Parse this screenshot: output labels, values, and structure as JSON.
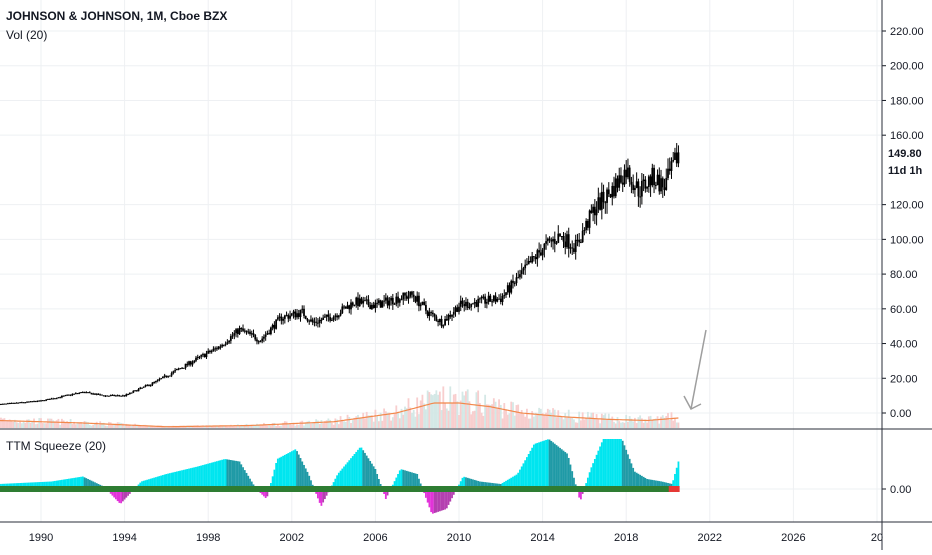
{
  "header": {
    "symbol_line": "JOHNSON & JOHNSON, 1M, Cboe BZX",
    "volume_indicator": "Vol (20)",
    "squeeze_indicator": "TTM Squeeze (20)"
  },
  "price_badges": {
    "last_price": "149.80",
    "countdown": "11d 1h"
  },
  "colors": {
    "candle": "#000000",
    "volume_up": "#f7c9c9",
    "volume_down": "#cfe6e3",
    "volume_ma": "#f2884b",
    "squeeze_pos_strong": "#00e5ef",
    "squeeze_pos_weak": "#1f9aa6",
    "squeeze_neg_strong": "#e233d9",
    "squeeze_neg_weak": "#b43fb0",
    "squeeze_dot_on": "#2e7d32",
    "squeeze_dot_off": "#e53935",
    "grid": "#eef0f3",
    "arrow": "#9e9e9e"
  },
  "icons": {
    "arrow_annotation": "downward-arrow-annotation"
  },
  "chart_data": [
    {
      "type": "candlestick",
      "pane": "price",
      "x_ticks": [
        "1990",
        "1994",
        "1998",
        "2002",
        "2006",
        "2010",
        "2014",
        "2018",
        "2022",
        "2026",
        "20"
      ],
      "y_ticks": [
        "220.00",
        "200.00",
        "180.00",
        "160.00",
        "120.00",
        "100.00",
        "80.00",
        "60.00",
        "40.00",
        "20.00",
        "0.00"
      ],
      "ylim": [
        -8,
        232
      ],
      "xlim": [
        1988.0,
        2030.0
      ],
      "approx_close_path": [
        [
          1988.0,
          5
        ],
        [
          1990.0,
          7
        ],
        [
          1992.0,
          12
        ],
        [
          1993.0,
          10
        ],
        [
          1994.0,
          10
        ],
        [
          1995.5,
          18
        ],
        [
          1997.0,
          28
        ],
        [
          1998.5,
          38
        ],
        [
          1999.5,
          48
        ],
        [
          2000.5,
          42
        ],
        [
          2001.5,
          55
        ],
        [
          2002.5,
          58
        ],
        [
          2003.0,
          52
        ],
        [
          2004.0,
          56
        ],
        [
          2005.0,
          64
        ],
        [
          2006.0,
          62
        ],
        [
          2007.0,
          66
        ],
        [
          2007.8,
          68
        ],
        [
          2008.5,
          58
        ],
        [
          2009.2,
          52
        ],
        [
          2010.0,
          62
        ],
        [
          2011.0,
          64
        ],
        [
          2012.0,
          66
        ],
        [
          2013.0,
          80
        ],
        [
          2014.0,
          95
        ],
        [
          2014.8,
          102
        ],
        [
          2015.6,
          96
        ],
        [
          2016.5,
          118
        ],
        [
          2017.3,
          128
        ],
        [
          2018.0,
          140
        ],
        [
          2018.6,
          128
        ],
        [
          2019.3,
          136
        ],
        [
          2019.8,
          130
        ],
        [
          2020.2,
          140
        ],
        [
          2020.5,
          149.8
        ]
      ],
      "last_price": 149.8
    },
    {
      "type": "bar",
      "pane": "volume",
      "name": "Vol (20)",
      "description_values": "monthly volume bars with 20-period moving average",
      "ma_path": [
        [
          1988.0,
          6
        ],
        [
          1992.0,
          4
        ],
        [
          1996.0,
          1
        ],
        [
          2000.0,
          2
        ],
        [
          2004.0,
          5
        ],
        [
          2007.0,
          12
        ],
        [
          2008.8,
          20
        ],
        [
          2010.0,
          20
        ],
        [
          2011.5,
          17
        ],
        [
          2013.0,
          12
        ],
        [
          2015.0,
          9
        ],
        [
          2017.0,
          7
        ],
        [
          2019.0,
          6
        ],
        [
          2020.5,
          8
        ]
      ]
    },
    {
      "type": "bar",
      "pane": "squeeze",
      "name": "TTM Squeeze (20)",
      "y_ticks": [
        "0.00"
      ],
      "momentum_path": [
        [
          1988.0,
          0.1
        ],
        [
          1990.5,
          0.15
        ],
        [
          1992.0,
          0.25
        ],
        [
          1993.0,
          0.05
        ],
        [
          1993.8,
          -0.3
        ],
        [
          1994.8,
          0.15
        ],
        [
          1996.0,
          0.3
        ],
        [
          1997.5,
          0.45
        ],
        [
          1998.8,
          0.6
        ],
        [
          1999.5,
          0.55
        ],
        [
          2000.3,
          0.0
        ],
        [
          2000.8,
          -0.2
        ],
        [
          2001.3,
          0.6
        ],
        [
          2002.2,
          0.8
        ],
        [
          2002.8,
          0.3
        ],
        [
          2003.4,
          -0.35
        ],
        [
          2004.2,
          0.3
        ],
        [
          2005.3,
          0.85
        ],
        [
          2006.0,
          0.4
        ],
        [
          2006.5,
          -0.2
        ],
        [
          2007.2,
          0.4
        ],
        [
          2008.0,
          0.3
        ],
        [
          2008.7,
          -0.5
        ],
        [
          2009.4,
          -0.4
        ],
        [
          2010.2,
          0.25
        ],
        [
          2011.0,
          0.15
        ],
        [
          2012.0,
          0.1
        ],
        [
          2012.8,
          0.3
        ],
        [
          2013.6,
          0.9
        ],
        [
          2014.3,
          1.0
        ],
        [
          2015.2,
          0.7
        ],
        [
          2015.8,
          -0.25
        ],
        [
          2016.3,
          0.4
        ],
        [
          2016.9,
          1.0
        ],
        [
          2017.8,
          1.0
        ],
        [
          2018.4,
          0.35
        ],
        [
          2019.0,
          0.2
        ],
        [
          2019.7,
          0.15
        ],
        [
          2020.2,
          0.1
        ],
        [
          2020.5,
          0.55
        ]
      ]
    }
  ]
}
